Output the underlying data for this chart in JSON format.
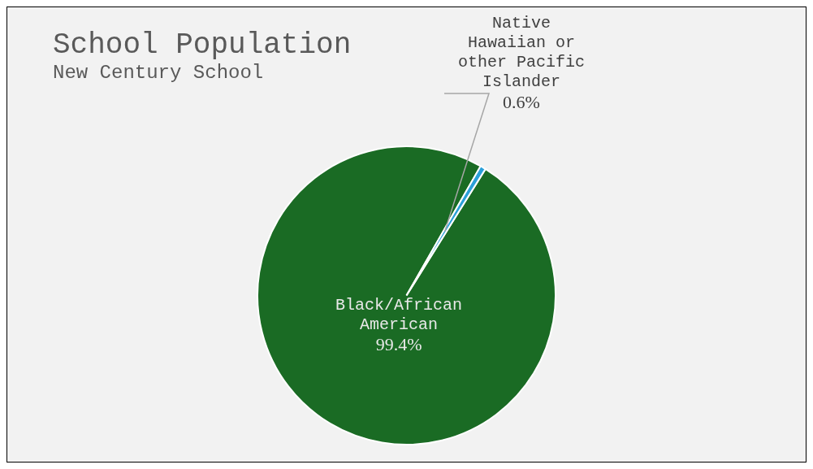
{
  "chart_data": {
    "type": "pie",
    "title": "School Population",
    "subtitle": "New Century School",
    "categories": [
      "Black/African American",
      "Native Hawaiian or other Pacific Islander"
    ],
    "values": [
      99.4,
      0.6
    ],
    "colors": [
      "#1a6b24",
      "#2a9fd8"
    ],
    "value_labels": [
      "99.4%",
      "0.6%"
    ],
    "legend": false
  }
}
